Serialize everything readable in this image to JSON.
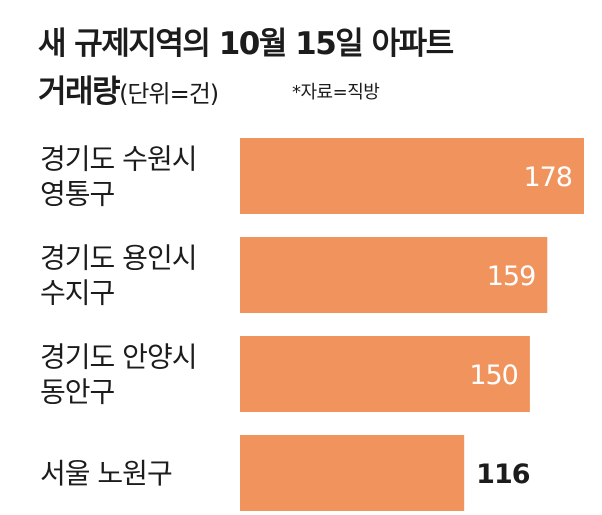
{
  "title": {
    "line1": "새 규제지역의 10월 15일 아파트",
    "line2": "거래량",
    "unit": "(단위=건)"
  },
  "source": "*자료=직방",
  "colors": {
    "bar": "#f0935d",
    "label_inside": "#ffffff",
    "label_outside": "#1c1c1c"
  },
  "chart_data": {
    "type": "bar",
    "orientation": "horizontal",
    "categories": [
      [
        "경기도 수원시",
        "영통구"
      ],
      [
        "경기도 용인시",
        "수지구"
      ],
      [
        "경기도 안양시",
        "동안구"
      ],
      [
        "서울 노원구"
      ]
    ],
    "values": [
      178,
      159,
      150,
      116
    ],
    "value_labels": [
      "178",
      "159",
      "150",
      "116"
    ],
    "xlim": [
      0,
      178
    ]
  }
}
